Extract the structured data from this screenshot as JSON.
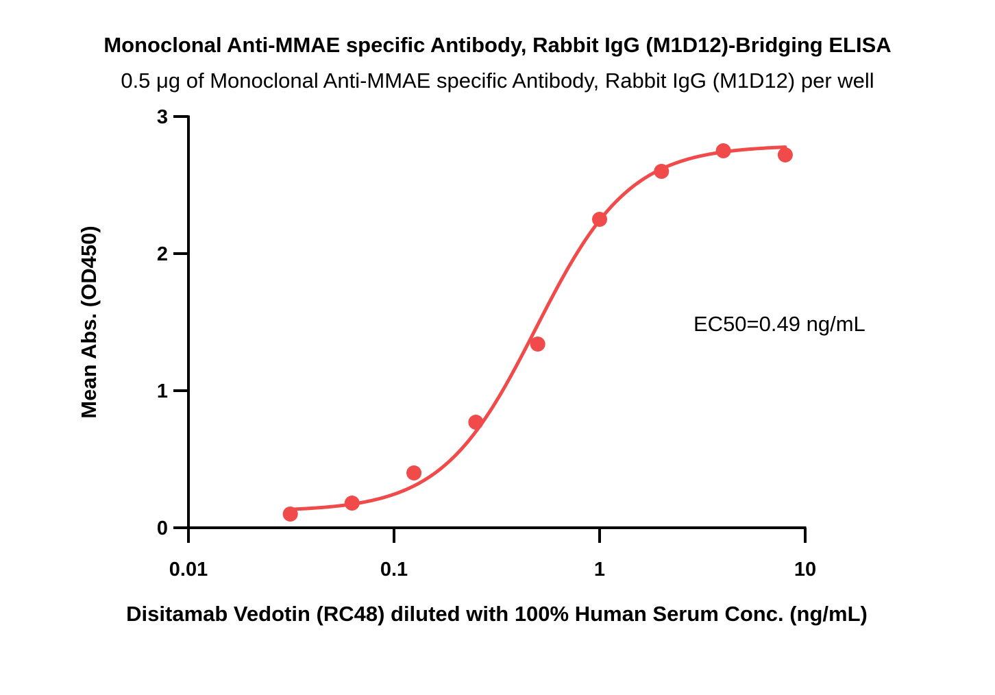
{
  "chart_data": {
    "type": "scatter",
    "title": "Monoclonal Anti-MMAE specific Antibody, Rabbit IgG (M1D12)-Bridging ELISA",
    "subtitle": "0.5 μg of Monoclonal Anti-MMAE specific Antibody, Rabbit IgG (M1D12) per well",
    "xlabel": "Disitamab Vedotin (RC48) diluted with 100% Human Serum Conc. (ng/mL)",
    "ylabel": "Mean Abs. (OD450)",
    "x_scale": "log",
    "xlim": [
      0.01,
      10
    ],
    "ylim": [
      0,
      3
    ],
    "x_ticks": [
      "0.01",
      "0.1",
      "1",
      "10"
    ],
    "y_ticks": [
      "0",
      "1",
      "2",
      "3"
    ],
    "x_tick_values": [
      0.01,
      0.1,
      1,
      10
    ],
    "y_tick_values": [
      0,
      1,
      2,
      3
    ],
    "grid": false,
    "color": "#f04a4a",
    "annotation": "EC50=0.49 ng/mL",
    "series": [
      {
        "points": [
          {
            "x": 0.0313,
            "y": 0.1
          },
          {
            "x": 0.0625,
            "y": 0.18
          },
          {
            "x": 0.125,
            "y": 0.4
          },
          {
            "x": 0.25,
            "y": 0.77
          },
          {
            "x": 0.5,
            "y": 1.34
          },
          {
            "x": 1.0,
            "y": 2.25
          },
          {
            "x": 2.0,
            "y": 2.6
          },
          {
            "x": 4.0,
            "y": 2.75
          },
          {
            "x": 8.0,
            "y": 2.72
          }
        ],
        "fit": {
          "model": "4PL",
          "bottom": 0.12,
          "top": 2.79,
          "ec50": 0.49,
          "hill": 1.9
        }
      }
    ]
  }
}
